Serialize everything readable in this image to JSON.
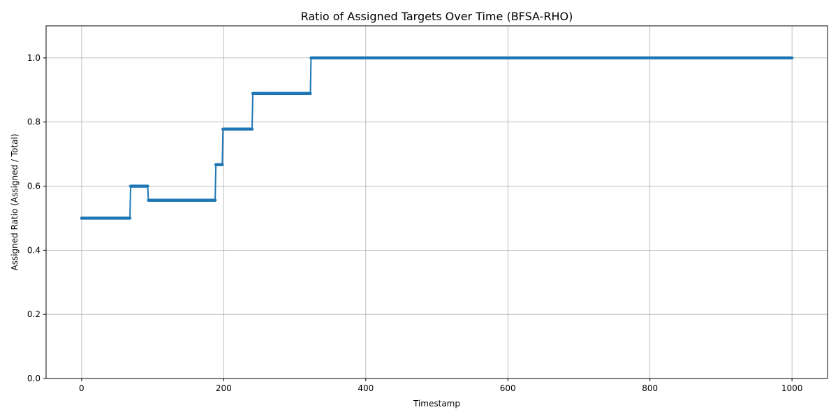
{
  "chart_data": {
    "type": "line",
    "title": "Ratio of Assigned Targets Over Time (BFSA-RHO)",
    "xlabel": "Timestamp",
    "ylabel": "Assigned Ratio (Assigned / Total)",
    "xlim": [
      -50,
      1050
    ],
    "ylim": [
      0.0,
      1.1
    ],
    "xticks": [
      0,
      200,
      400,
      600,
      800,
      1000
    ],
    "yticks": [
      0.0,
      0.2,
      0.4,
      0.6,
      0.8,
      1.0
    ],
    "xtick_labels": [
      "0",
      "200",
      "400",
      "600",
      "800",
      "1000"
    ],
    "ytick_labels": [
      "0.0",
      "0.2",
      "0.4",
      "0.6",
      "0.8",
      "1.0"
    ],
    "grid": true,
    "legend": "none",
    "markers": true,
    "series": [
      {
        "color": "#1f77b4",
        "steps": [
          {
            "x_start": 0,
            "x_end": 68,
            "y": 0.5
          },
          {
            "x_start": 69,
            "x_end": 93,
            "y": 0.6
          },
          {
            "x_start": 94,
            "x_end": 188,
            "y": 0.556
          },
          {
            "x_start": 189,
            "x_end": 198,
            "y": 0.667
          },
          {
            "x_start": 199,
            "x_end": 240,
            "y": 0.778
          },
          {
            "x_start": 241,
            "x_end": 322,
            "y": 0.889
          },
          {
            "x_start": 323,
            "x_end": 1000,
            "y": 1.0
          }
        ]
      }
    ]
  }
}
